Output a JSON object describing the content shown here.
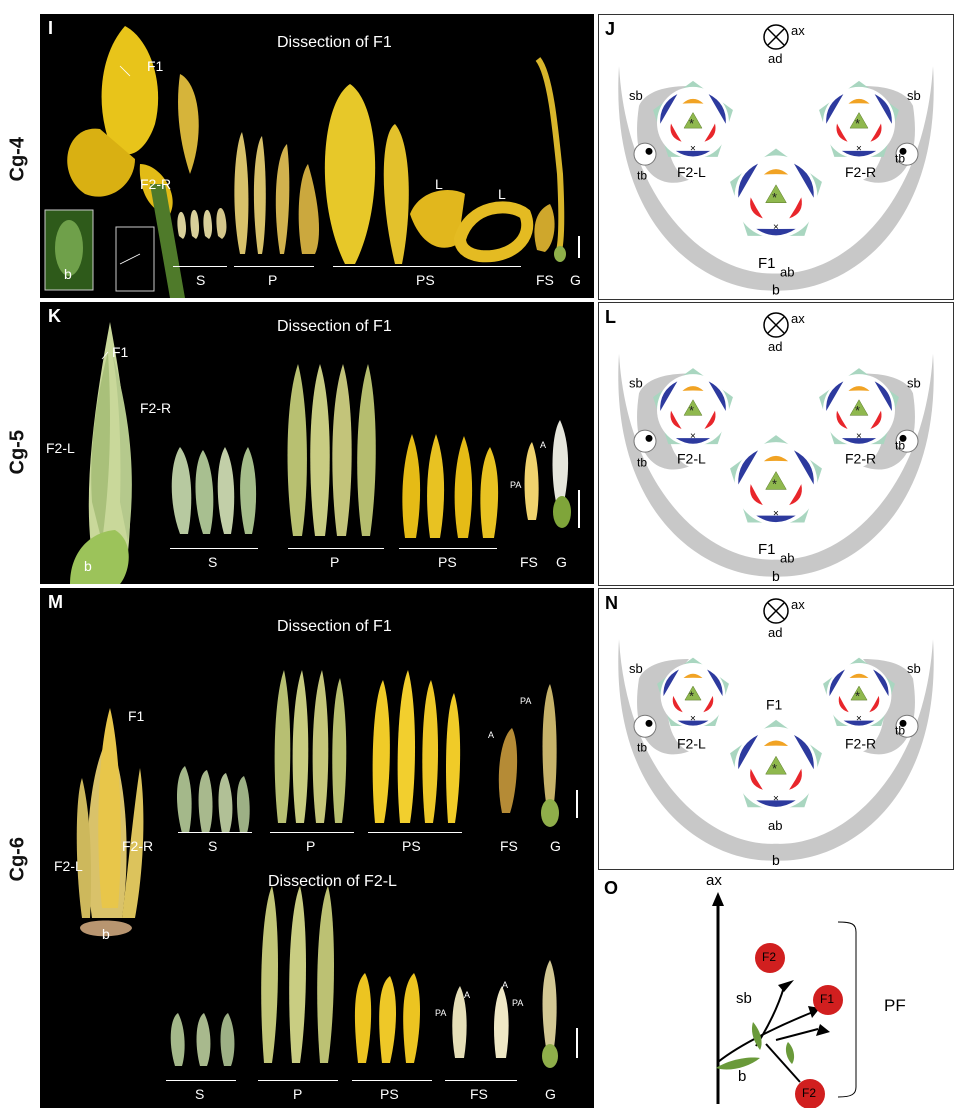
{
  "rows": [
    "Cg-4",
    "Cg-5",
    "Cg-6"
  ],
  "panels": {
    "I": {
      "letter": "I",
      "title": "Dissection of F1",
      "labels": {
        "f1": "F1",
        "f2r": "F2-R",
        "b": "b"
      },
      "groups": [
        "S",
        "P",
        "PS",
        "FS",
        "G"
      ],
      "extra": {
        "l1": "L",
        "l2": "L"
      }
    },
    "J": {
      "letter": "J"
    },
    "K": {
      "letter": "K",
      "title": "Dissection of F1",
      "labels": {
        "f1": "F1",
        "f2l": "F2-L",
        "f2r": "F2-R",
        "b": "b",
        "a": "A",
        "pa": "PA"
      },
      "groups": [
        "S",
        "P",
        "PS",
        "FS",
        "G"
      ]
    },
    "L": {
      "letter": "L"
    },
    "M": {
      "letter": "M",
      "title": "Dissection of F1",
      "title2": "Dissection of F2-L",
      "labels": {
        "f1": "F1",
        "f2l": "F2-L",
        "f2r": "F2-R",
        "b": "b",
        "a": "A",
        "pa": "PA"
      },
      "groups": [
        "S",
        "P",
        "PS",
        "FS",
        "G"
      ],
      "groups2": [
        "S",
        "P",
        "PS",
        "FS",
        "G"
      ]
    },
    "N": {
      "letter": "N"
    },
    "O": {
      "letter": "O",
      "labels": {
        "ax": "ax",
        "sb": "sb",
        "b": "b",
        "pf": "PF",
        "f1": "F1",
        "f2a": "F2",
        "f2b": "F2"
      }
    }
  },
  "diagram_labels": {
    "ax": "ax",
    "ad": "ad",
    "ab": "ab",
    "b": "b",
    "sb": "sb",
    "tb": "tb",
    "f1": "F1",
    "f2l": "F2-L",
    "f2r": "F2-R"
  },
  "colors": {
    "bract": "#c8c8c8",
    "sepal": "#a9d6c0",
    "petal": "#2d3a9e",
    "staminode": "#e8262b",
    "labellum": "#f1a324",
    "gynoecium": "#8fb84e",
    "flower_red": "#d11f1f"
  }
}
